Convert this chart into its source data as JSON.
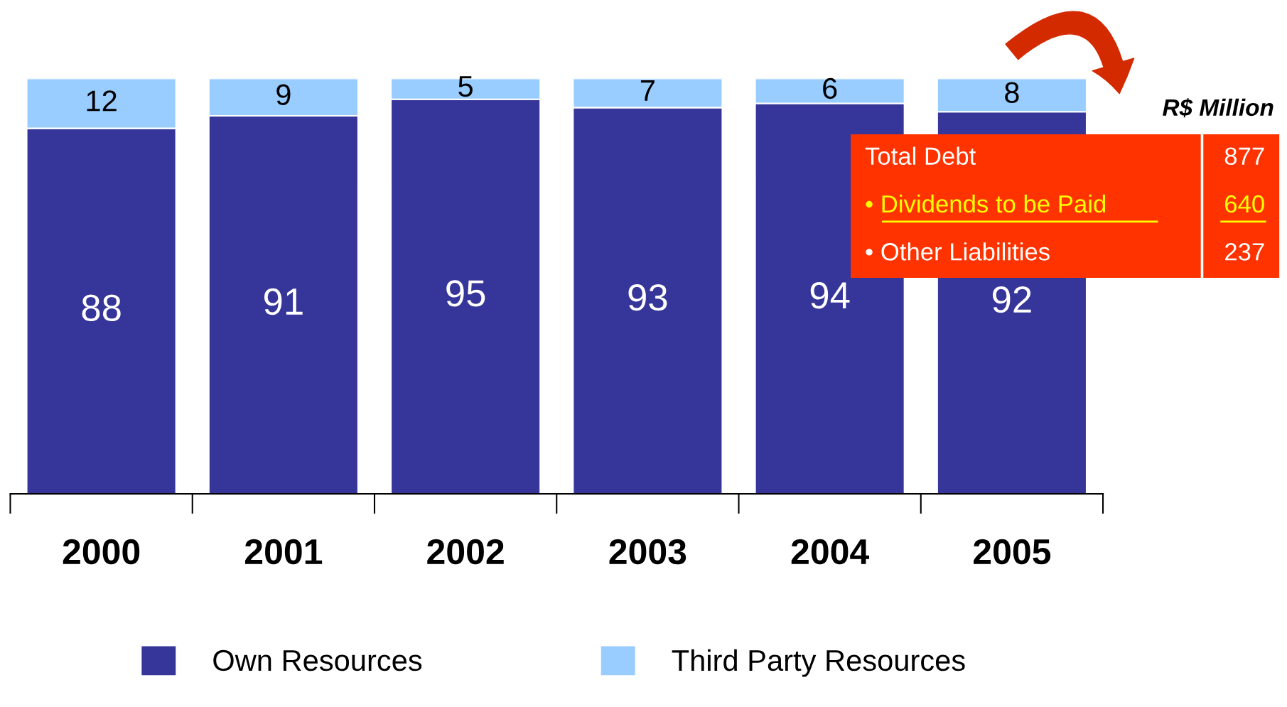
{
  "chart_data": {
    "type": "bar",
    "stacked": true,
    "categories": [
      "2000",
      "2001",
      "2002",
      "2003",
      "2004",
      "2005"
    ],
    "series": [
      {
        "name": "Own Resources",
        "color": "#35359a",
        "values": [
          88,
          91,
          95,
          93,
          94,
          92
        ]
      },
      {
        "name": "Third Party Resources",
        "color": "#99ccff",
        "values": [
          12,
          9,
          5,
          7,
          6,
          8
        ]
      }
    ],
    "data_labels": true,
    "legend": "bottom",
    "grid": false,
    "annotations": [
      "R$ Million",
      "Total Debt",
      "877",
      "• Dividends to be Paid",
      "640",
      "• Other Liabilities",
      "237"
    ]
  }
}
